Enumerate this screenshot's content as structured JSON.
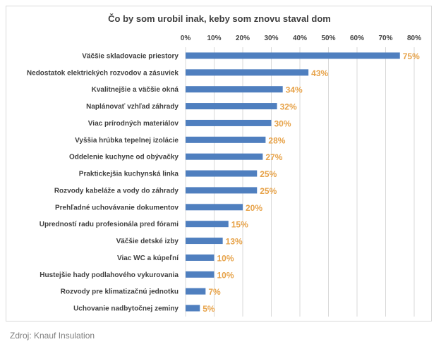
{
  "chart_data": {
    "type": "bar",
    "orientation": "horizontal",
    "title": "Čo by som urobil inak, keby som znovu staval dom",
    "xlabel": "",
    "ylabel": "",
    "xlim": [
      0,
      80
    ],
    "x_ticks": [
      "0%",
      "10%",
      "20%",
      "30%",
      "40%",
      "50%",
      "60%",
      "70%",
      "80%"
    ],
    "x_axis_position": "top",
    "grid": true,
    "categories": [
      "Väčšie skladovacie priestory",
      "Nedostatok elektrických rozvodov a zásuviek",
      "Kvalitnejšie a väčšie okná",
      "Naplánovať vzhľad záhrady",
      "Viac prírodných materiálov",
      "Vyššia hrúbka tepelnej izolácie",
      "Oddelenie kuchyne od obývačky",
      "Praktickejšia kuchynská linka",
      "Rozvody kabeláže a vody do záhrady",
      "Prehľadné uchovávanie dokumentov",
      "Upredností radu profesionála pred fórami",
      "Väčšie detské izby",
      "Viac WC a kúpeľní",
      "Hustejšie hady podlahového vykurovania",
      "Rozvody pre klimatizačnú jednotku",
      "Uchovanie nadbytočnej zeminy"
    ],
    "values": [
      75,
      43,
      34,
      32,
      30,
      28,
      27,
      25,
      25,
      20,
      15,
      13,
      10,
      10,
      7,
      5
    ],
    "data_labels": [
      "75%",
      "43%",
      "34%",
      "32%",
      "30%",
      "28%",
      "27%",
      "25%",
      "25%",
      "20%",
      "15%",
      "13%",
      "10%",
      "10%",
      "7%",
      "5%"
    ],
    "colors": {
      "bar": "#4f7fbf",
      "data_label": "#e7a34a",
      "grid": "#d9d9d9",
      "text": "#404040"
    }
  },
  "source": "Zdroj: Knauf Insulation"
}
